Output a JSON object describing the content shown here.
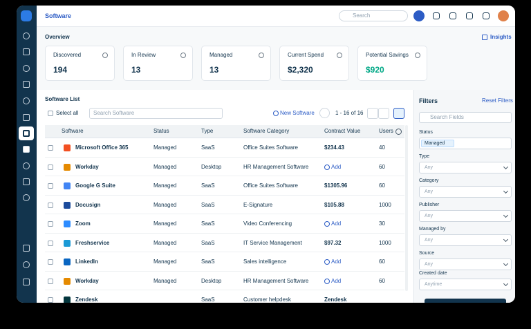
{
  "header": {
    "title": "Software",
    "search_placeholder": "Search"
  },
  "overview": {
    "title": "Overview",
    "insights": "Insights",
    "cards": [
      {
        "label": "Discovered",
        "value": "194"
      },
      {
        "label": "In Review",
        "value": "13"
      },
      {
        "label": "Managed",
        "value": "13"
      },
      {
        "label": "Current Spend",
        "value": "$2,320"
      },
      {
        "label": "Potential Savings",
        "value": "$920"
      }
    ]
  },
  "software_list": {
    "title": "Software List",
    "select_all": "Select all",
    "search_placeholder": "Search Software",
    "new_software": "New Software",
    "pagination": "1 - 16 of 16",
    "columns": [
      "Software",
      "Status",
      "Type",
      "Software Category",
      "Contract Value",
      "Users"
    ],
    "rows": [
      {
        "name": "Microsoft Office 365",
        "status": "Managed",
        "type": "SaaS",
        "category": "Office Suites Software",
        "contract": "$234.43",
        "users": "40"
      },
      {
        "name": "Workday",
        "status": "Managed",
        "type": "Desktop",
        "category": "HR Management Software",
        "add": "Add",
        "users": "60"
      },
      {
        "name": "Google G Suite",
        "status": "Managed",
        "type": "SaaS",
        "category": "Office Suites Software",
        "contract": "$1305.96",
        "users": "60"
      },
      {
        "name": "Docusign",
        "status": "Managed",
        "type": "SaaS",
        "category": "E-Signature",
        "contract": "$105.88",
        "users": "1000"
      },
      {
        "name": "Zoom",
        "status": "Managed",
        "type": "SaaS",
        "category": "Video Conferencing",
        "add": "Add",
        "users": "30"
      },
      {
        "name": "Freshservice",
        "status": "Managed",
        "type": "SaaS",
        "category": "IT Service Management",
        "contract": "$97.32",
        "users": "1000"
      },
      {
        "name": "LinkedIn",
        "status": "Managed",
        "type": "SaaS",
        "category": "Sales intelligence",
        "add": "Add",
        "users": "60"
      },
      {
        "name": "Workday",
        "status": "Managed",
        "type": "Desktop",
        "category": "HR Management Software",
        "add": "Add",
        "users": "60"
      },
      {
        "name": "Zendesk",
        "type": "SaaS",
        "category": "Customer helpdesk",
        "contract": "Zendesk"
      }
    ]
  },
  "filters": {
    "title": "Filters",
    "reset": "Reset Filters",
    "search_placeholder": "Search Fields",
    "fields": [
      {
        "label": "Status",
        "chip": "Managed"
      },
      {
        "label": "Type",
        "value": "Any"
      },
      {
        "label": "Category",
        "value": "Any"
      },
      {
        "label": "Publisher",
        "value": "Any"
      },
      {
        "label": "Managed by",
        "value": "Any"
      },
      {
        "label": "Source",
        "value": "Any"
      },
      {
        "label": "Created date",
        "value": "Anytime"
      }
    ]
  }
}
